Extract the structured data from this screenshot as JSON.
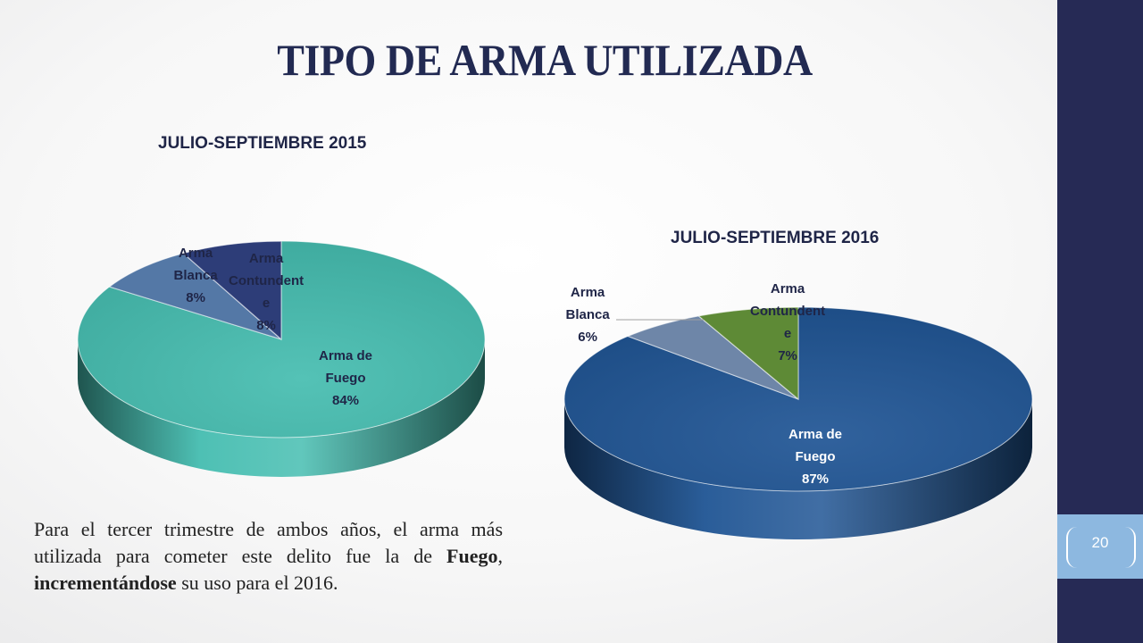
{
  "slide": {
    "title": "TIPO DE ARMA UTILIZADA",
    "page_number": "20",
    "note": {
      "part1": "Para el tercer trimestre de ambos años, el arma más utilizada para cometer este delito fue la de ",
      "bold1": "Fuego",
      "part2": ", ",
      "bold2": "incrementándose",
      "part3": " su uso para el 2016."
    }
  },
  "colors": {
    "sidebar": "#262a55",
    "page_box": "#8db8e0",
    "title": "#222a52"
  },
  "chart_data": [
    {
      "type": "pie",
      "title": "JULIO-SEPTIEMBRE 2015",
      "slices": [
        {
          "name": "Arma de Fuego",
          "label_lines": [
            "Arma de",
            "Fuego"
          ],
          "value": 84,
          "pct": "84%",
          "color": "#45bdb0"
        },
        {
          "name": "Arma Blanca",
          "label_lines": [
            "Arma",
            "Blanca"
          ],
          "value": 8,
          "pct": "8%",
          "color": "#5478a6"
        },
        {
          "name": "Arma Contundente",
          "label_lines": [
            "Arma",
            "Contundent",
            "e"
          ],
          "value": 8,
          "pct": "8%",
          "color": "#2d3d78"
        }
      ]
    },
    {
      "type": "pie",
      "title": "JULIO-SEPTIEMBRE 2016",
      "slices": [
        {
          "name": "Arma de Fuego",
          "label_lines": [
            "Arma de",
            "Fuego"
          ],
          "value": 87,
          "pct": "87%",
          "color": "#1f5494"
        },
        {
          "name": "Arma Blanca",
          "label_lines": [
            "Arma",
            "Blanca"
          ],
          "value": 6,
          "pct": "6%",
          "color": "#6e86a8"
        },
        {
          "name": "Arma Contundente",
          "label_lines": [
            "Arma",
            "Contundent",
            "e"
          ],
          "value": 7,
          "pct": "7%",
          "color": "#5e8a36"
        }
      ]
    }
  ]
}
